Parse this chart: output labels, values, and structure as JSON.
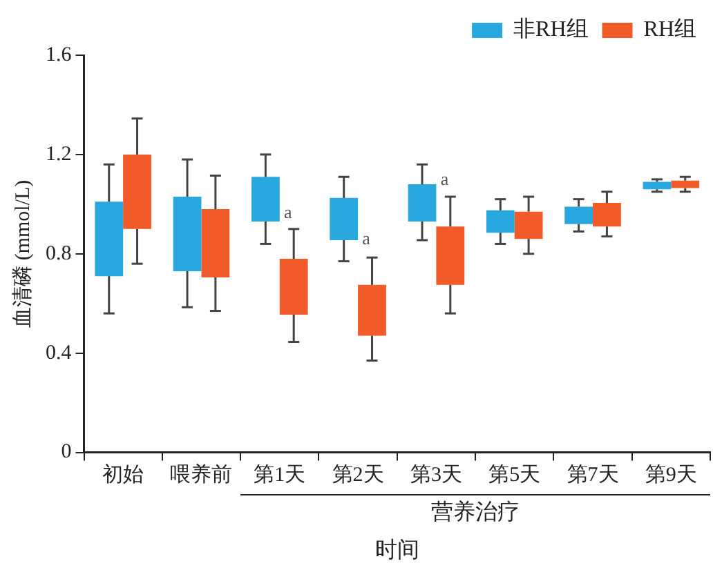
{
  "chart_data": {
    "type": "box",
    "xlabel": "时间",
    "ylabel": "血清磷 (mmol/L)",
    "categories": [
      "初始",
      "喂养前",
      "第1天",
      "第2天",
      "第3天",
      "第5天",
      "第7天",
      "第9天"
    ],
    "ylim": [
      0,
      1.6
    ],
    "yticks": [
      0,
      0.4,
      0.8,
      1.2,
      1.6
    ],
    "grid": false,
    "legend": "top right",
    "series": [
      {
        "name": "非RH组",
        "color": "#29a8e0",
        "boxes": [
          {
            "low": 0.56,
            "q1": 0.71,
            "q3": 1.01,
            "high": 1.16
          },
          {
            "low": 0.585,
            "q1": 0.73,
            "q3": 1.03,
            "high": 1.18
          },
          {
            "low": 0.84,
            "q1": 0.93,
            "q3": 1.11,
            "high": 1.2
          },
          {
            "low": 0.77,
            "q1": 0.855,
            "q3": 1.025,
            "high": 1.11
          },
          {
            "low": 0.855,
            "q1": 0.93,
            "q3": 1.08,
            "high": 1.16
          },
          {
            "low": 0.84,
            "q1": 0.885,
            "q3": 0.975,
            "high": 1.02
          },
          {
            "low": 0.89,
            "q1": 0.92,
            "q3": 0.99,
            "high": 1.02
          },
          {
            "low": 1.05,
            "q1": 1.06,
            "q3": 1.09,
            "high": 1.1
          }
        ]
      },
      {
        "name": "RH组",
        "color": "#f15a29",
        "boxes": [
          {
            "low": 0.76,
            "q1": 0.9,
            "q3": 1.2,
            "high": 1.345
          },
          {
            "low": 0.57,
            "q1": 0.705,
            "q3": 0.98,
            "high": 1.115
          },
          {
            "low": 0.445,
            "q1": 0.555,
            "q3": 0.78,
            "high": 0.9
          },
          {
            "low": 0.37,
            "q1": 0.47,
            "q3": 0.675,
            "high": 0.785
          },
          {
            "low": 0.56,
            "q1": 0.675,
            "q3": 0.91,
            "high": 1.03
          },
          {
            "low": 0.8,
            "q1": 0.86,
            "q3": 0.97,
            "high": 1.03
          },
          {
            "low": 0.87,
            "q1": 0.91,
            "q3": 1.005,
            "high": 1.05
          },
          {
            "low": 1.05,
            "q1": 1.065,
            "q3": 1.095,
            "high": 1.11
          }
        ]
      }
    ],
    "annotations": [
      {
        "text": "a",
        "x": "第1天",
        "y": 0.96
      },
      {
        "text": "a",
        "x": "第2天",
        "y": 0.855
      },
      {
        "text": "a",
        "x": "第3天",
        "y": 1.095
      },
      "营养治疗"
    ]
  }
}
